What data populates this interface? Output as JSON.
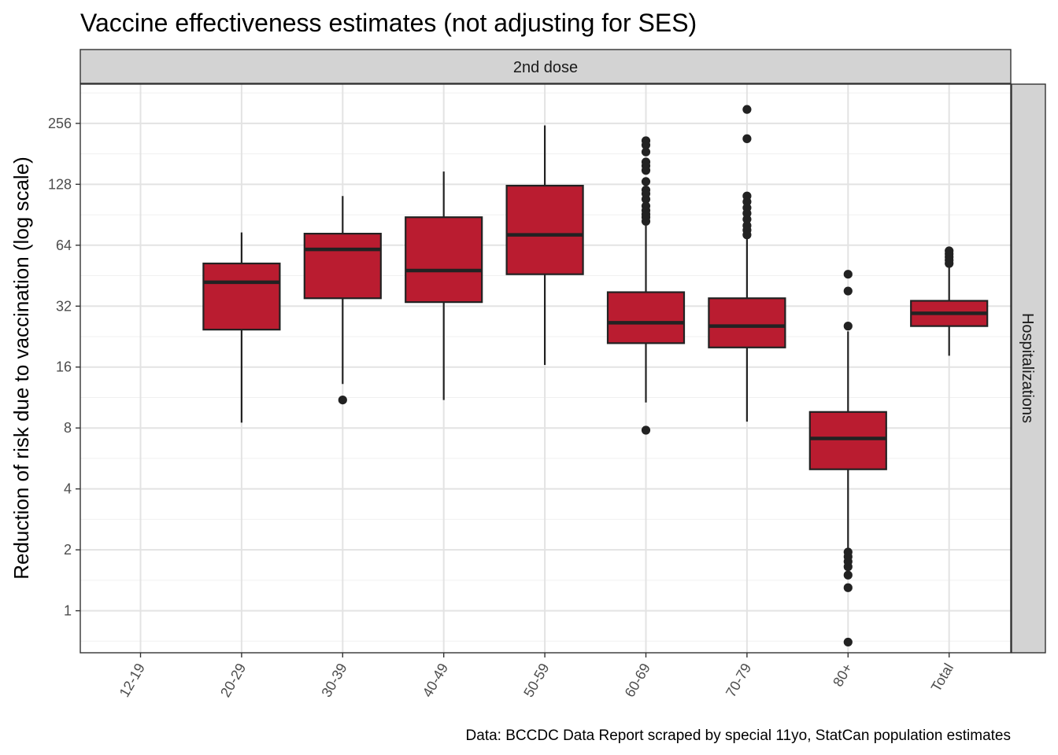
{
  "chart_data": {
    "type": "box",
    "title": "Vaccine effectiveness estimates (not adjusting for SES)",
    "facet_col": "2nd dose",
    "facet_row": "Hospitalizations",
    "xlabel": "",
    "ylabel": "Reduction of risk due to vaccination (log scale)",
    "caption": "Data: BCCDC Data Report scraped by special 11yo, StatCan population estimates",
    "y_scale": "log2",
    "ylim": [
      0.62,
      400
    ],
    "yticks": [
      1,
      2,
      4,
      8,
      16,
      32,
      64,
      128,
      256
    ],
    "ytick_labels": [
      "1",
      "2",
      "4",
      "8",
      "16",
      "32",
      "64",
      "128",
      "256"
    ],
    "categories": [
      "12-19",
      "20-29",
      "30-39",
      "40-49",
      "50-59",
      "60-69",
      "70-79",
      "80+",
      "Total"
    ],
    "fill_color": "#BA1C30",
    "grid": true,
    "boxes": [
      {
        "category": "12-19"
      },
      {
        "category": "20-29",
        "whisker_low": 8.5,
        "q1": 24.5,
        "median": 42,
        "q3": 52,
        "whisker_high": 74,
        "outliers": []
      },
      {
        "category": "30-39",
        "whisker_low": 13.2,
        "q1": 35,
        "median": 61,
        "q3": 73,
        "whisker_high": 112,
        "outliers": [
          11
        ]
      },
      {
        "category": "40-49",
        "whisker_low": 11,
        "q1": 33.5,
        "median": 48,
        "q3": 88,
        "whisker_high": 148,
        "outliers": []
      },
      {
        "category": "50-59",
        "whisker_low": 16.4,
        "q1": 46,
        "median": 72,
        "q3": 126,
        "whisker_high": 250,
        "outliers": []
      },
      {
        "category": "60-69",
        "whisker_low": 10.7,
        "q1": 21,
        "median": 26.5,
        "q3": 37.5,
        "whisker_high": 80,
        "outliers": [
          7.8,
          84,
          88,
          91,
          95,
          100,
          108,
          115,
          120,
          132,
          150,
          158,
          165,
          185,
          200,
          210
        ]
      },
      {
        "category": "70-79",
        "whisker_low": 8.6,
        "q1": 20,
        "median": 25.5,
        "q3": 35,
        "whisker_high": 70,
        "outliers": [
          72,
          76,
          80,
          86,
          92,
          98,
          105,
          112,
          215,
          300
        ]
      },
      {
        "category": "80+",
        "whisker_low": 2.0,
        "q1": 5.0,
        "median": 7.1,
        "q3": 9.6,
        "whisker_high": 24,
        "outliers": [
          0.7,
          1.3,
          1.5,
          1.65,
          1.75,
          1.85,
          1.95,
          25.5,
          38,
          46
        ]
      },
      {
        "category": "Total",
        "whisker_low": 18.2,
        "q1": 25.5,
        "median": 29.5,
        "q3": 34,
        "whisker_high": 50,
        "outliers": [
          52,
          54,
          56,
          58,
          60
        ]
      }
    ]
  }
}
